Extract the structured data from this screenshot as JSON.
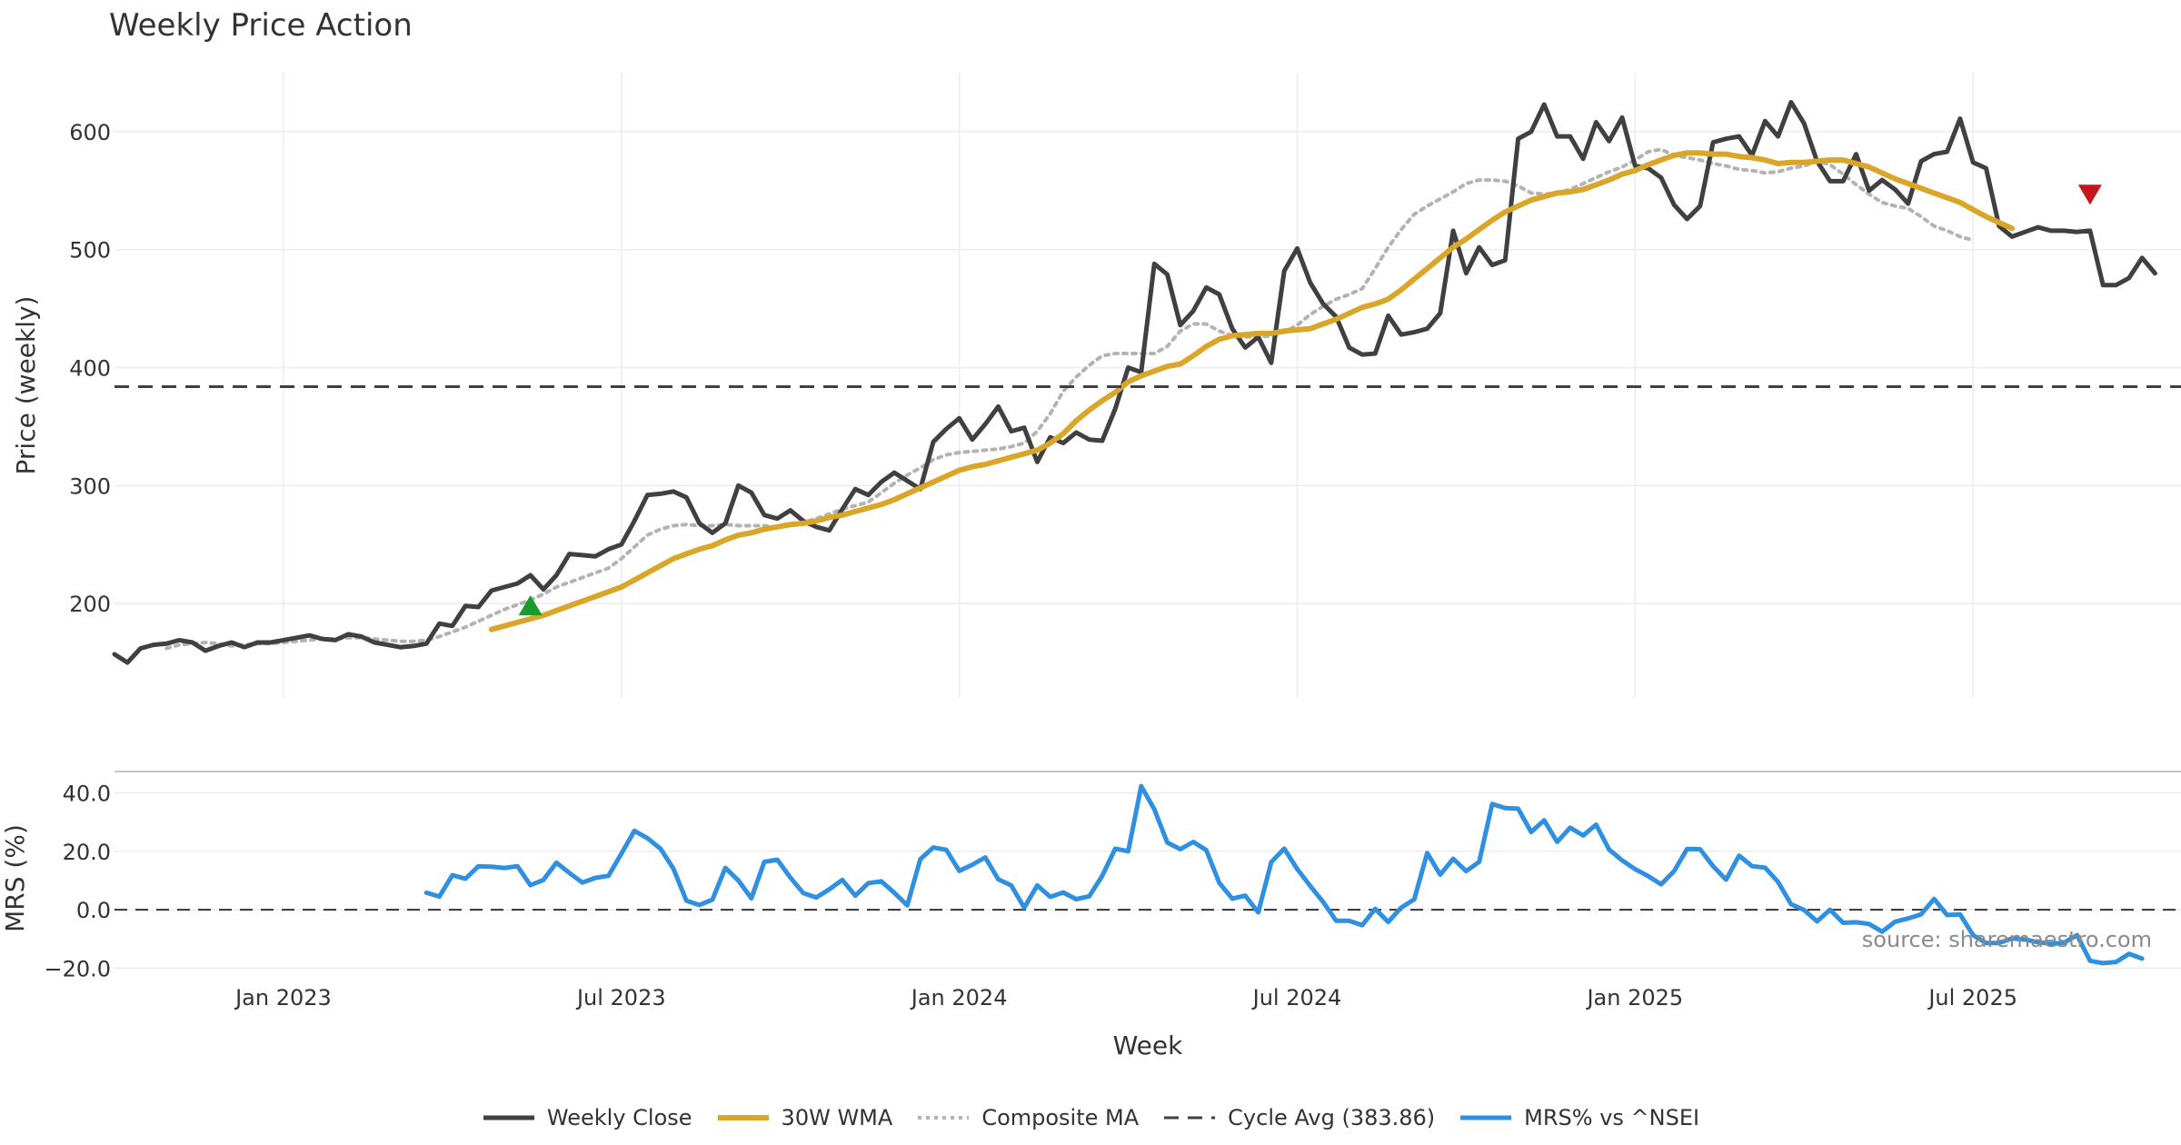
{
  "chart_data": [
    {
      "type": "line",
      "title": "Weekly Price Action",
      "xlabel": "Week",
      "ylabel": "Price (weekly)",
      "ylim": [
        120,
        650
      ],
      "yticks": [
        200,
        300,
        400,
        500,
        600
      ],
      "x_ticks": [
        "Jan 2023",
        "Jul 2023",
        "Jan 2024",
        "Jul 2024",
        "Jan 2025",
        "Jul 2025"
      ],
      "grid": true,
      "series": [
        {
          "name": "Weekly Close",
          "color": "#404040",
          "style": "solid",
          "start_week": 0,
          "values": [
            157,
            150,
            162,
            165,
            166,
            169,
            167,
            160,
            164,
            167,
            163,
            167,
            167,
            169,
            171,
            173,
            170,
            169,
            174,
            172,
            167,
            165,
            163,
            164,
            166,
            183,
            181,
            198,
            197,
            211,
            214,
            217,
            224,
            212,
            224,
            242,
            241,
            240,
            246,
            250,
            270,
            292,
            293,
            295,
            290,
            268,
            260,
            268,
            300,
            294,
            275,
            272,
            279,
            270,
            265,
            262,
            280,
            297,
            292,
            303,
            311,
            304,
            297,
            337,
            348,
            357,
            339,
            352,
            367,
            346,
            349,
            320,
            341,
            336,
            345,
            339,
            338,
            365,
            400,
            396,
            488,
            479,
            436,
            448,
            468,
            462,
            433,
            417,
            426,
            404,
            482,
            501,
            472,
            454,
            443,
            417,
            411,
            412,
            444,
            428,
            430,
            433,
            446,
            516,
            480,
            502,
            487,
            491,
            594,
            600,
            623,
            596,
            596,
            577,
            608,
            592,
            612,
            571,
            569,
            561,
            538,
            526,
            537,
            591,
            594,
            596,
            580,
            609,
            596,
            625,
            607,
            575,
            558,
            558,
            581,
            550,
            559,
            551,
            539,
            575,
            581,
            583,
            611,
            574,
            569,
            520,
            511,
            515,
            519,
            516,
            516,
            515,
            516,
            470,
            470,
            476,
            493,
            480
          ]
        },
        {
          "name": "30W WMA",
          "color": "#d9a62a",
          "style": "solid",
          "start_week": 29,
          "values": [
            178,
            181,
            184,
            187,
            190,
            194,
            198,
            202,
            206,
            210,
            214,
            220,
            226,
            232,
            238,
            242,
            246,
            249,
            254,
            258,
            260,
            263,
            265,
            267,
            268,
            270,
            273,
            275,
            278,
            281,
            284,
            288,
            293,
            298,
            303,
            308,
            313,
            316,
            318,
            321,
            324,
            327,
            330,
            336,
            344,
            355,
            364,
            372,
            379,
            388,
            393,
            397,
            401,
            403,
            410,
            418,
            424,
            427,
            428,
            429,
            429,
            431,
            432,
            433,
            437,
            441,
            446,
            451,
            454,
            458,
            466,
            475,
            484,
            493,
            502,
            509,
            517,
            525,
            532,
            537,
            542,
            545,
            548,
            549,
            551,
            555,
            559,
            564,
            567,
            572,
            576,
            580,
            582,
            582,
            581,
            581,
            579,
            578,
            576,
            573,
            574,
            574,
            575,
            576,
            576,
            573,
            570,
            565,
            560,
            556,
            552,
            548,
            544,
            540,
            534,
            528,
            523,
            518
          ]
        },
        {
          "name": "Composite MA",
          "color": "#b3b3b3",
          "style": "dotted",
          "start_week": 4,
          "values": [
            162,
            165,
            166,
            167,
            166,
            164,
            165,
            166,
            166,
            167,
            168,
            169,
            170,
            170,
            171,
            171,
            170,
            169,
            168,
            168,
            169,
            172,
            176,
            180,
            185,
            190,
            195,
            199,
            203,
            208,
            214,
            218,
            222,
            226,
            230,
            238,
            248,
            258,
            263,
            266,
            267,
            266,
            266,
            267,
            266,
            266,
            266,
            265,
            266,
            269,
            272,
            276,
            280,
            283,
            286,
            294,
            302,
            309,
            315,
            322,
            326,
            328,
            329,
            330,
            331,
            333,
            336,
            346,
            361,
            380,
            392,
            402,
            410,
            412,
            412,
            412,
            412,
            418,
            431,
            437,
            437,
            431,
            427,
            426,
            426,
            427,
            430,
            436,
            445,
            452,
            458,
            462,
            467,
            484,
            502,
            517,
            530,
            537,
            543,
            549,
            556,
            559,
            559,
            558,
            554,
            548,
            547,
            548,
            551,
            556,
            561,
            566,
            570,
            576,
            583,
            585,
            580,
            578,
            576,
            573,
            571,
            568,
            567,
            565,
            566,
            569,
            571,
            575,
            572,
            564,
            555,
            547,
            540,
            537,
            535,
            528,
            520,
            516,
            511,
            508
          ]
        },
        {
          "name": "Cycle Avg (383.86)",
          "color": "#404040",
          "style": "dashed",
          "value": 383.86
        }
      ],
      "markers": [
        {
          "type": "buy",
          "shape": "triangle-up",
          "color": "#1a9a2a",
          "week": 32,
          "value": 198
        },
        {
          "type": "sell",
          "shape": "triangle-down",
          "color": "#c8161b",
          "week": 152,
          "value": 547
        }
      ],
      "week_range": [
        0,
        159
      ]
    },
    {
      "type": "line",
      "title": "",
      "xlabel": "Week",
      "ylabel": "MRS (%)",
      "ylim": [
        -23,
        47
      ],
      "yticks": [
        -20,
        0,
        20,
        40
      ],
      "ytick_labels": [
        "−20.0",
        "0.0",
        "20.0",
        "40.0"
      ],
      "x_ticks": [
        "Jan 2023",
        "Jul 2023",
        "Jan 2024",
        "Jul 2024",
        "Jan 2025",
        "Jul 2025"
      ],
      "grid": true,
      "reference_line": 0,
      "series": [
        {
          "name": "MRS% vs ^NSEI",
          "color": "#2f8fe0",
          "style": "solid",
          "start_week": 24,
          "values": [
            5.8,
            4.5,
            11.8,
            10.6,
            14.9,
            14.7,
            14.3,
            14.9,
            8.4,
            10.2,
            16.1,
            12.6,
            9.3,
            10.9,
            11.6,
            19.2,
            27,
            24.5,
            20.9,
            14.1,
            3.1,
            1.6,
            3.4,
            14.3,
            10,
            3.9,
            16.4,
            17.1,
            11,
            5.7,
            4.2,
            7,
            10.2,
            4.8,
            9.1,
            9.7,
            5.8,
            1.5,
            17.3,
            21.3,
            20.5,
            13.3,
            15.4,
            17.9,
            10.4,
            8.3,
            0.7,
            8.3,
            4.4,
            5.9,
            3.6,
            4.6,
            11.6,
            20.9,
            20,
            42.3,
            34.4,
            23,
            20.7,
            23.2,
            20.4,
            9.2,
            3.8,
            4.8,
            -0.9,
            16.3,
            20.9,
            13.9,
            8.1,
            2.6,
            -3.8,
            -3.8,
            -5.3,
            0.3,
            -4.2,
            0.7,
            3.5,
            19.4,
            12,
            17.4,
            13.2,
            16.4,
            36.2,
            34.8,
            34.6,
            26.6,
            30.6,
            23.2,
            28.1,
            25.4,
            29.1,
            20.6,
            16.9,
            13.9,
            11.5,
            8.7,
            13.2,
            20.8,
            20.7,
            14.9,
            10.3,
            18.5,
            14.9,
            14.4,
            9.5,
            1.9,
            -0.1,
            -4,
            0,
            -4.5,
            -4.3,
            -4.9,
            -7.5,
            -4.1,
            -3,
            -1.6,
            3.7,
            -1.8,
            -1.6,
            -8.7,
            -11.4,
            -11.4,
            -9.8,
            -10.2,
            -11.1,
            -11.7,
            -11.3,
            -8.7,
            -17.5,
            -18.3,
            -17.9,
            -15.1,
            -16.7
          ]
        }
      ],
      "week_range": [
        0,
        159
      ]
    }
  ],
  "source_text": "source: sharemaestro.com",
  "legend": [
    {
      "label": "Weekly Close",
      "color": "#404040",
      "style": "solid"
    },
    {
      "label": "30W WMA",
      "color": "#d9a62a",
      "style": "solid"
    },
    {
      "label": "Composite MA",
      "color": "#b3b3b3",
      "style": "dotted"
    },
    {
      "label": "Cycle Avg (383.86)",
      "color": "#404040",
      "style": "dashed"
    },
    {
      "label": "MRS% vs ^NSEI",
      "color": "#2f8fe0",
      "style": "solid"
    }
  ]
}
